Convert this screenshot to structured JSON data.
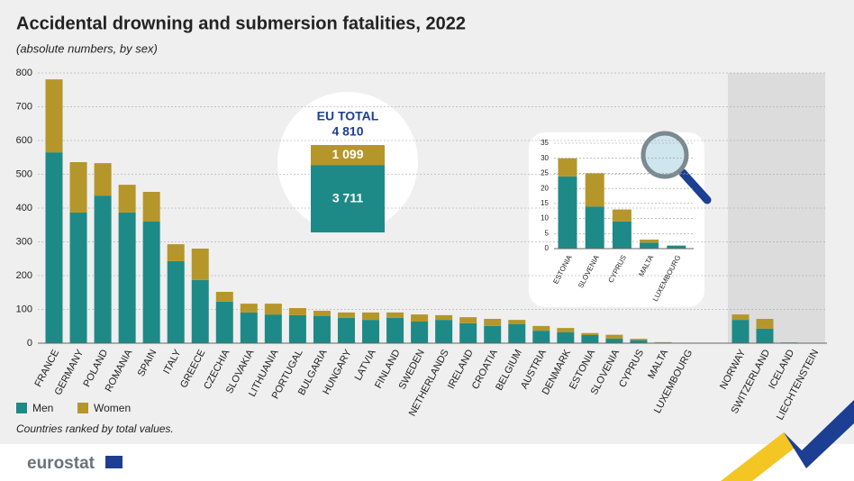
{
  "chart_data": [
    {
      "type": "bar",
      "stacked": true,
      "title": "Accidental drowning and submersion fatalities, 2022",
      "subtitle": "(absolute numbers, by sex)",
      "note": "Countries ranked by total values.",
      "source": "eurostat",
      "categories": [
        "FRANCE",
        "GERMANY",
        "POLAND",
        "ROMANIA",
        "SPAIN",
        "ITALY",
        "GREECE",
        "CZECHIA",
        "SLOVAKIA",
        "LITHUANIA",
        "PORTUGAL",
        "BULGARIA",
        "HUNGARY",
        "LATVIA",
        "FINLAND",
        "SWEDEN",
        "NETHERLANDS",
        "IRELAND",
        "CROATIA",
        "BELGIUM",
        "AUSTRIA",
        "DENMARK",
        "ESTONIA",
        "SLOVENIA",
        "CYPRUS",
        "MALTA",
        "LUXEMBOURG",
        "NORWAY",
        "SWITZERLAND",
        "ICELAND",
        "LIECHTENSTEIN"
      ],
      "series": [
        {
          "name": "Men",
          "color": "#1e8a87",
          "values": [
            565,
            387,
            437,
            387,
            360,
            243,
            187,
            123,
            91,
            85,
            83,
            80,
            75,
            69,
            75,
            64,
            69,
            59,
            51,
            56,
            37,
            32,
            24,
            14,
            9,
            2,
            1,
            69,
            43,
            2,
            0
          ]
        },
        {
          "name": "Women",
          "color": "#b5962a",
          "values": [
            216,
            149,
            96,
            82,
            88,
            50,
            93,
            29,
            26,
            32,
            21,
            16,
            16,
            22,
            16,
            21,
            14,
            18,
            21,
            13,
            14,
            13,
            6,
            11,
            4,
            1,
            0,
            16,
            29,
            0,
            0
          ]
        }
      ],
      "ylim": [
        0,
        800
      ],
      "yticks": [
        0,
        100,
        200,
        300,
        400,
        500,
        600,
        700,
        800
      ],
      "grid": true,
      "legend": "bottom-left",
      "eu_total": {
        "label": "EU TOTAL",
        "value": 4810,
        "value_label": "4 810",
        "women": 1099,
        "women_label": "1 099",
        "men": 3711,
        "men_label": "3 711"
      }
    },
    {
      "type": "bar",
      "stacked": true,
      "categories": [
        "ESTONIA",
        "SLOVENIA",
        "CYPRUS",
        "MALTA",
        "LUXEMBOURG"
      ],
      "series": [
        {
          "name": "Men",
          "color": "#1e8a87",
          "values": [
            24,
            14,
            9,
            2,
            1
          ]
        },
        {
          "name": "Women",
          "color": "#b5962a",
          "values": [
            6,
            11,
            4,
            1,
            0
          ]
        }
      ],
      "ylim": [
        0,
        35
      ],
      "yticks": [
        0,
        5,
        10,
        15,
        20,
        25,
        30,
        35
      ],
      "grid": true
    }
  ]
}
